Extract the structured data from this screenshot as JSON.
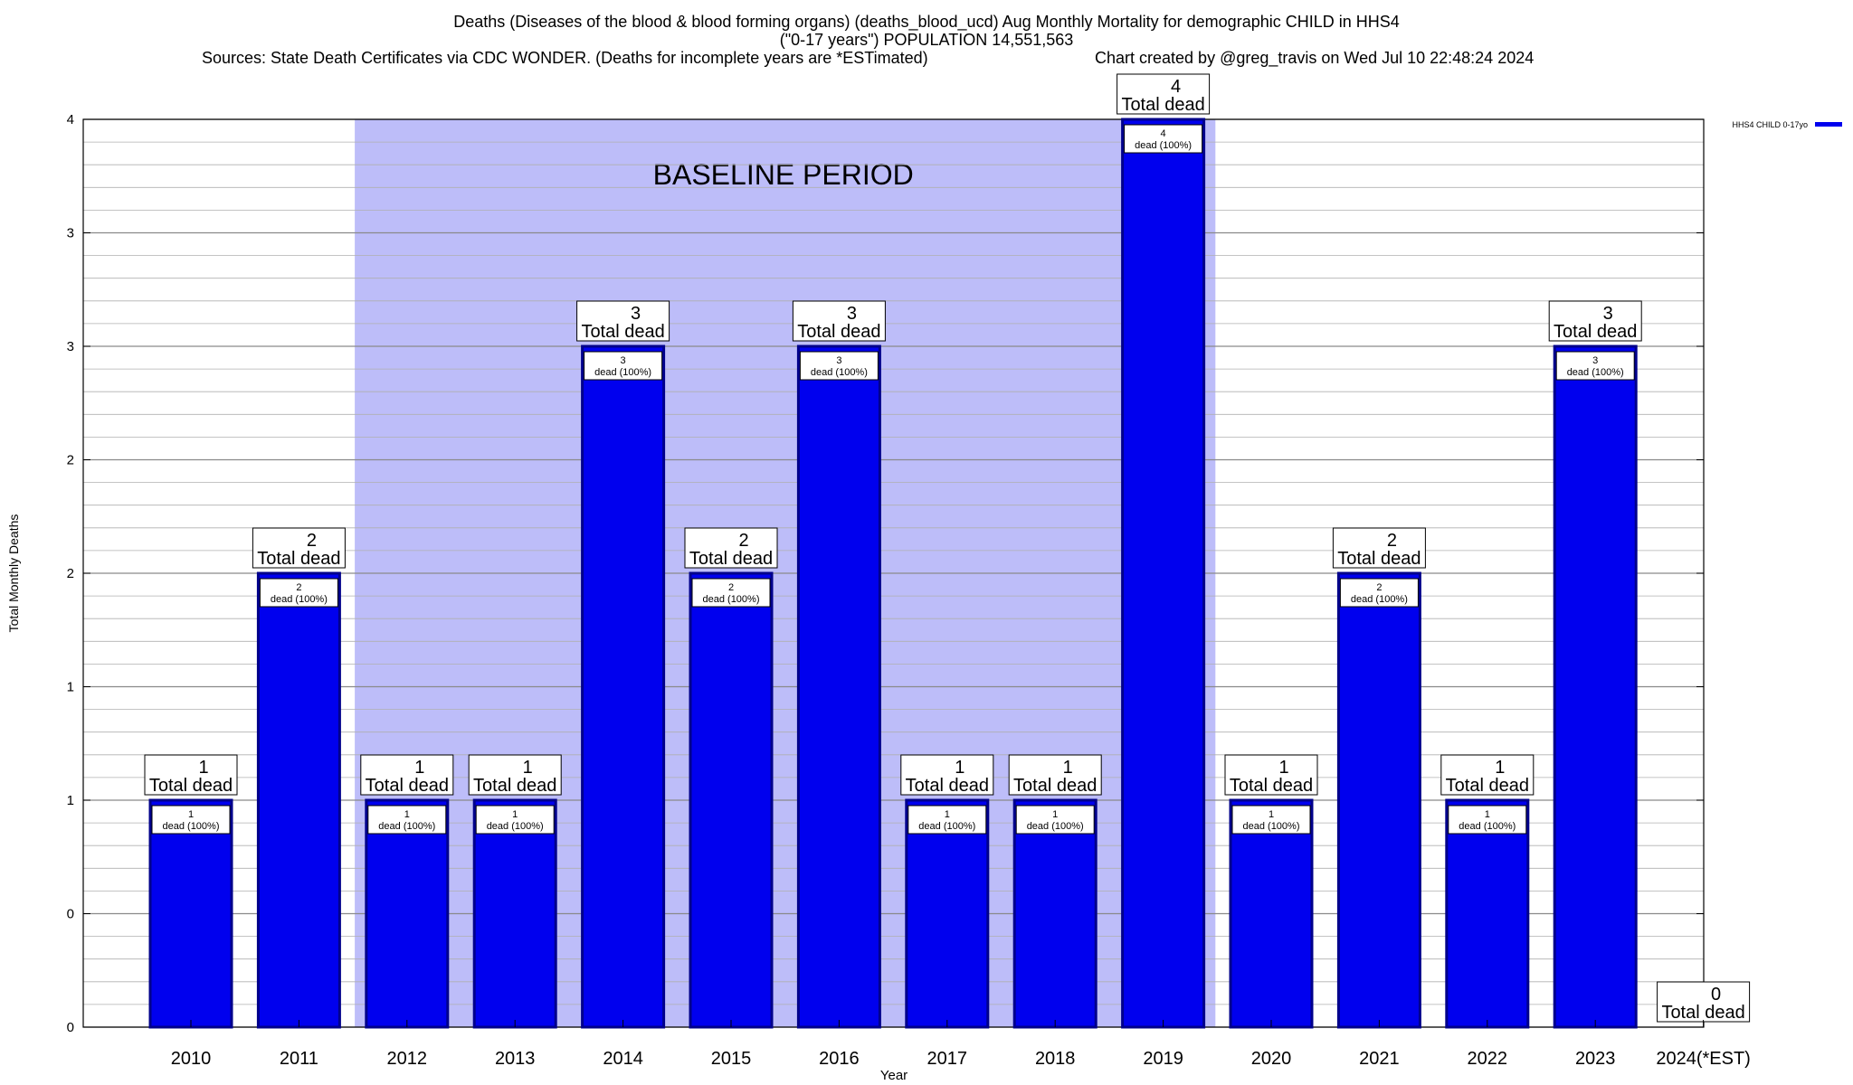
{
  "header": {
    "title_line1": "Deaths (Diseases of the blood & blood forming organs) (deaths_blood_ucd) Aug Monthly Mortality for demographic CHILD in HHS4",
    "title_line2": "(\"0-17 years\") POPULATION 14,551,563",
    "sources": "Sources: State Death Certificates via CDC WONDER. (Deaths for incomplete years are *ESTimated)",
    "credit": "Chart created by @greg_travis on Wed Jul 10 22:48:24 2024"
  },
  "chart_data": {
    "type": "bar",
    "xlabel": "Year",
    "ylabel": "Total Monthly Deaths",
    "categories": [
      "2010",
      "2011",
      "2012",
      "2013",
      "2014",
      "2015",
      "2016",
      "2017",
      "2018",
      "2019",
      "2020",
      "2021",
      "2022",
      "2023",
      "2024(*EST)"
    ],
    "series": [
      {
        "name": "HHS4 CHILD 0-17yo",
        "values": [
          1,
          2,
          1,
          1,
          3,
          2,
          3,
          1,
          1,
          4,
          1,
          2,
          1,
          3,
          0
        ]
      }
    ],
    "ylim": [
      0,
      4
    ],
    "y_tick_values": [
      0,
      0.5,
      1,
      1.5,
      2,
      2.5,
      3,
      3.5,
      4
    ],
    "y_tick_labels": [
      "0",
      "0",
      "1",
      "1",
      "2",
      "2",
      "3",
      "3",
      "4"
    ],
    "total_label_text": "Total dead",
    "bar_label_text": "dead (100%)",
    "baseline": {
      "label": "BASELINE PERIOD",
      "from": "2012",
      "to": "2019"
    },
    "legend_position": "top-right",
    "grid": true,
    "colors": {
      "bar": "#0000ee",
      "bar_edge": "#00008b",
      "baseline": "#bdbdf9",
      "grid": "#b0b0b0"
    }
  }
}
